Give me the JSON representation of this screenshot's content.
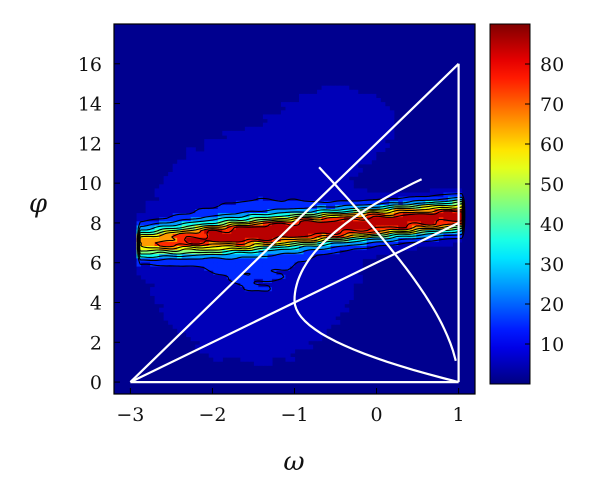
{
  "chart_data": {
    "type": "heatmap",
    "xlabel": "ω",
    "ylabel": "φ",
    "xlim": [
      -3.2,
      1.2
    ],
    "ylim": [
      -0.6,
      18
    ],
    "xticks": [
      -3,
      -2,
      -1,
      0,
      1
    ],
    "xtick_labels": [
      "−3",
      "−2",
      "−1",
      "0",
      "1"
    ],
    "yticks": [
      0,
      2,
      4,
      6,
      8,
      10,
      12,
      14,
      16
    ],
    "yticks_labels": [
      "0",
      "2",
      "4",
      "6",
      "8",
      "10",
      "12",
      "14",
      "16"
    ],
    "colorbar": {
      "range": [
        0,
        90
      ],
      "ticks": [
        10,
        20,
        30,
        40,
        50,
        60,
        70,
        80
      ],
      "tick_labels": [
        "10",
        "20",
        "30",
        "40",
        "50",
        "60",
        "70",
        "80"
      ],
      "colormap": "jet"
    },
    "density_peak": {
      "x": 0.0,
      "y": 8.4,
      "value": 88
    },
    "contour_levels": [
      10,
      20,
      30,
      40,
      50,
      60,
      70,
      80
    ],
    "overlay_lines": [
      {
        "name": "",
        "points": [
          [
            -3,
            0
          ],
          [
            1,
            16
          ]
        ]
      },
      {
        "name": "",
        "points": [
          [
            1,
            16
          ],
          [
            1,
            0
          ]
        ]
      },
      {
        "name": "",
        "points": [
          [
            -3,
            0
          ],
          [
            1,
            0
          ]
        ]
      },
      {
        "name": "",
        "points": [
          [
            -3,
            0
          ],
          [
            1,
            8
          ]
        ]
      }
    ],
    "background_color": "#00008f",
    "overlay_color": "#ffffff"
  }
}
